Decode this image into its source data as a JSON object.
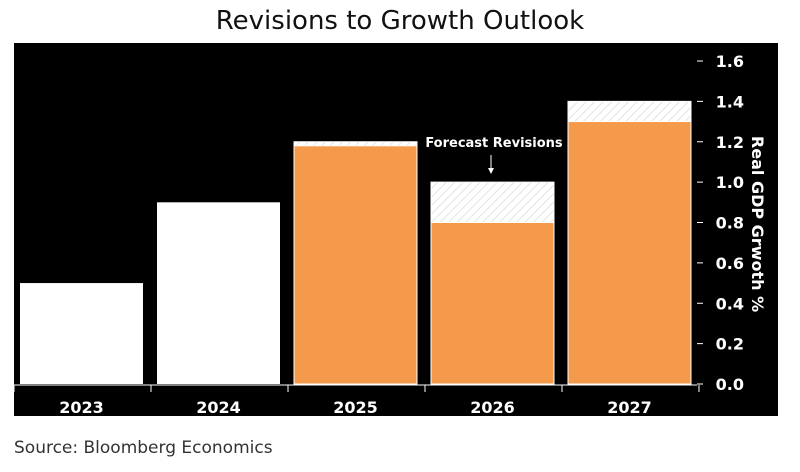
{
  "chart_data": {
    "type": "bar",
    "title": "Revisions to Growth Outlook",
    "categories": [
      "2023",
      "2024",
      "2025",
      "2026",
      "2027"
    ],
    "series": [
      {
        "name": "",
        "values": [
          0.5,
          0.9,
          1.18,
          0.8,
          1.3
        ]
      }
    ],
    "previous_forecast": [
      null,
      null,
      1.2,
      1.0,
      1.4
    ],
    "bar_colors": [
      "#ffffff",
      "#ffffff",
      "#f5994a",
      "#f5994a",
      "#f5994a"
    ],
    "ylabel": "Real GDP Grwoth %",
    "xlabel": "",
    "ylim": [
      0,
      1.6
    ],
    "yticks": [
      "0.0",
      "0.2",
      "0.4",
      "0.6",
      "0.8",
      "1.0",
      "1.2",
      "1.4",
      "1.6"
    ],
    "annotation": "Forecast Revisions",
    "axis_position": "right",
    "grid": false,
    "background": "#000000"
  },
  "source": "Source: Bloomberg Economics"
}
